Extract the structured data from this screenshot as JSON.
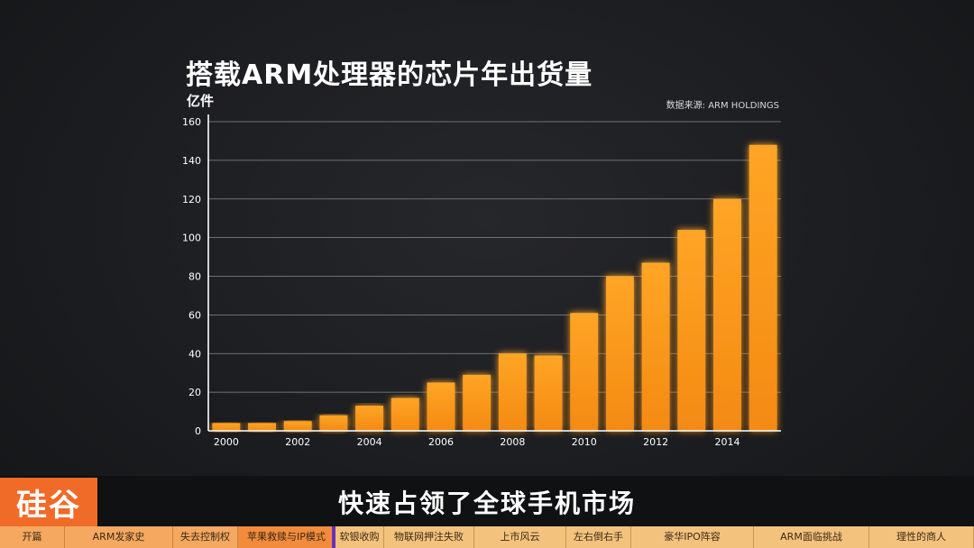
{
  "title": "搭载ARM处理器的芯片年出货量",
  "y_unit": "亿件",
  "source": "数据来源: ARM HOLDINGS",
  "subtitle": "快速占领了全球手机市场",
  "logo_text": "硅谷",
  "colors": {
    "bar": "#f7931e",
    "bar_glow": "#ff7a00",
    "background": "#1c1d20",
    "axis": "#ffffff",
    "chapter_bar": "#f3c27d",
    "logo": "#f06a28",
    "progress_marker": "#6a2fb8"
  },
  "chapters": [
    {
      "label": "开篇",
      "state": "done"
    },
    {
      "label": "ARM发家史",
      "state": "done"
    },
    {
      "label": "失去控制权",
      "state": "done"
    },
    {
      "label": "苹果救赎与IP模式",
      "state": "current"
    },
    {
      "label": "软银收购",
      "state": "upcoming"
    },
    {
      "label": "物联网押注失败",
      "state": "upcoming"
    },
    {
      "label": "上市风云",
      "state": "upcoming"
    },
    {
      "label": "左右倒右手",
      "state": "upcoming"
    },
    {
      "label": "豪华IPO阵容",
      "state": "upcoming"
    },
    {
      "label": "ARM面临挑战",
      "state": "upcoming"
    },
    {
      "label": "理性的商人",
      "state": "upcoming"
    }
  ],
  "chart_data": {
    "type": "bar",
    "title": "搭载ARM处理器的芯片年出货量",
    "ylabel": "亿件",
    "xlabel": "",
    "categories": [
      "2000",
      "2001",
      "2002",
      "2003",
      "2004",
      "2005",
      "2006",
      "2007",
      "2008",
      "2009",
      "2010",
      "2011",
      "2012",
      "2013",
      "2014",
      "2015"
    ],
    "values": [
      4,
      4,
      5,
      8,
      13,
      17,
      25,
      29,
      40,
      39,
      61,
      80,
      87,
      104,
      120,
      148
    ],
    "x_tick_labels": [
      "2000",
      "2002",
      "2004",
      "2006",
      "2008",
      "2010",
      "2012",
      "2014"
    ],
    "y_ticks": [
      0,
      20,
      40,
      60,
      80,
      100,
      120,
      140,
      160
    ],
    "ylim": [
      0,
      160
    ],
    "grid": true,
    "legend": "none"
  }
}
